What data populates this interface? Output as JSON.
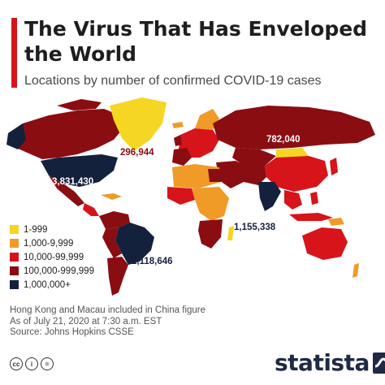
{
  "header": {
    "title": "The Virus That Has Enveloped the World",
    "subtitle": "Locations by number of confirmed COVID-19 cases"
  },
  "legend": {
    "items": [
      {
        "label": "1-999",
        "color": "#f5d623"
      },
      {
        "label": "1,000-9,999",
        "color": "#f09a28"
      },
      {
        "label": "10,000-99,999",
        "color": "#d7141a"
      },
      {
        "label": "100,000-999,999",
        "color": "#8a0d12"
      },
      {
        "label": "1,000,000+",
        "color": "#14213d"
      }
    ]
  },
  "map_labels": {
    "us": "3,831,430",
    "uk": "296,944",
    "russia": "782,040",
    "india": "1,155,338",
    "brazil": "2,118,646"
  },
  "notes": {
    "line1": "Hong Kong and Macau included in China figure",
    "line2": "As of July 21, 2020 at 7:30 a.m. EST",
    "line3": "Source: Johns Hopkins CSSE"
  },
  "footer": {
    "brand": "statista",
    "license_icons": [
      "cc",
      "i",
      "="
    ]
  }
}
